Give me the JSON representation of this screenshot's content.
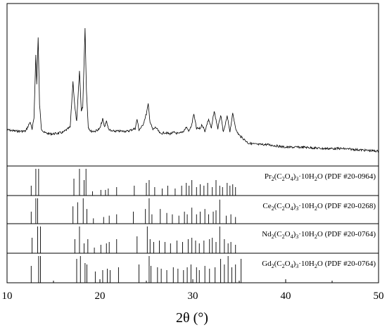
{
  "chart_data": {
    "type": "line",
    "xlabel": "2θ (°)",
    "xlim": [
      10,
      50
    ],
    "xticks": [
      10,
      20,
      30,
      40,
      50
    ],
    "xtick_labels": [
      "10",
      "20",
      "30",
      "40",
      "50"
    ],
    "xrd_pattern": {
      "x": [
        10.0,
        11.0,
        12.0,
        12.5,
        12.7,
        12.9,
        13.1,
        13.2,
        13.35,
        13.5,
        13.7,
        14.0,
        14.5,
        15.0,
        16.0,
        16.8,
        17.1,
        17.3,
        17.5,
        17.8,
        18.0,
        18.15,
        18.4,
        18.55,
        18.75,
        19.0,
        19.5,
        20.0,
        20.3,
        20.5,
        20.7,
        20.9,
        21.2,
        22.0,
        23.0,
        23.8,
        24.0,
        24.2,
        24.6,
        25.0,
        25.2,
        25.4,
        25.7,
        26.0,
        26.5,
        27.0,
        27.5,
        28.0,
        28.5,
        29.0,
        29.3,
        29.6,
        29.9,
        30.1,
        30.4,
        30.8,
        31.0,
        31.3,
        31.7,
        32.0,
        32.3,
        32.7,
        33.0,
        33.3,
        33.7,
        34.0,
        34.3,
        34.7,
        35.0,
        36.0,
        37.0,
        38.0,
        40.0,
        42.0,
        44.0,
        46.0,
        48.0,
        50.0
      ],
      "y": [
        16,
        15,
        15,
        22,
        16,
        25,
        72,
        50,
        85,
        35,
        17,
        14,
        13,
        13,
        14,
        18,
        52,
        33,
        22,
        60,
        30,
        33,
        92,
        45,
        18,
        15,
        15,
        17,
        24,
        18,
        23,
        17,
        15,
        15,
        15,
        17,
        24,
        16,
        19,
        28,
        35,
        22,
        16,
        18,
        13,
        14,
        13,
        14,
        13,
        15,
        18,
        15,
        20,
        28,
        17,
        17,
        20,
        15,
        24,
        17,
        30,
        17,
        27,
        14,
        26,
        15,
        28,
        15,
        12,
        6,
        5,
        5,
        3,
        3,
        2,
        2,
        1,
        0
      ]
    },
    "reference_panels": [
      {
        "name": "Pr2(C2O4)3·10H2O (PDF #20-0964)",
        "label_main": "Pr",
        "label_sub": [
          "2",
          "2",
          "4",
          "3",
          "2"
        ],
        "label_parts": [
          "(C",
          "O",
          ")",
          "·10H",
          "O (PDF #20-0964)"
        ],
        "peaks": [
          12.6,
          13.1,
          13.4,
          17.2,
          17.8,
          18.3,
          18.5,
          19.2,
          20.1,
          20.6,
          20.9,
          21.8,
          23.7,
          25.0,
          25.3,
          25.9,
          26.7,
          27.3,
          28.1,
          28.8,
          29.3,
          29.6,
          29.9,
          30.4,
          30.8,
          31.2,
          31.6,
          32.1,
          32.5,
          32.9,
          33.2,
          33.7,
          34.0,
          34.3,
          34.6
        ],
        "heights": [
          0.35,
          0.95,
          0.95,
          0.6,
          0.95,
          0.55,
          0.95,
          0.15,
          0.2,
          0.2,
          0.25,
          0.3,
          0.35,
          0.45,
          0.55,
          0.3,
          0.25,
          0.35,
          0.25,
          0.35,
          0.45,
          0.35,
          0.55,
          0.3,
          0.4,
          0.35,
          0.45,
          0.3,
          0.55,
          0.35,
          0.3,
          0.45,
          0.35,
          0.4,
          0.3
        ]
      },
      {
        "name": "Ce2(C2O4)3·10H2O (PDF #20-0268)",
        "label_main": "Ce",
        "label_sub": [
          "2",
          "2",
          "4",
          "3",
          "2"
        ],
        "label_parts": [
          "(C",
          "O",
          ")",
          "·10H",
          "O (PDF #20-0268)"
        ],
        "peaks": [
          12.6,
          13.1,
          13.3,
          17.1,
          17.6,
          18.2,
          18.6,
          19.3,
          20.4,
          21.0,
          21.8,
          23.6,
          24.9,
          25.3,
          25.6,
          26.5,
          27.2,
          27.8,
          28.5,
          29.1,
          29.4,
          29.9,
          30.4,
          30.8,
          31.3,
          31.7,
          32.2,
          32.5,
          32.9,
          33.6,
          34.1,
          34.6
        ],
        "heights": [
          0.45,
          0.95,
          0.95,
          0.65,
          0.8,
          0.95,
          0.55,
          0.2,
          0.25,
          0.3,
          0.35,
          0.45,
          0.55,
          0.95,
          0.35,
          0.55,
          0.4,
          0.35,
          0.3,
          0.45,
          0.35,
          0.6,
          0.35,
          0.45,
          0.55,
          0.35,
          0.45,
          0.5,
          0.9,
          0.3,
          0.35,
          0.25
        ]
      },
      {
        "name": "Nd2(C2O4)3·10H2O (PDF #20-0764)",
        "label_main": "Nd",
        "label_sub": [
          "2",
          "2",
          "4",
          "3",
          "2"
        ],
        "label_parts": [
          "(C",
          "O",
          ")",
          "·10H",
          "O (PDF #20-0764)"
        ],
        "peaks": [
          12.7,
          13.3,
          13.6,
          17.3,
          17.8,
          18.3,
          18.7,
          19.4,
          20.1,
          20.7,
          21.0,
          21.8,
          24.0,
          25.1,
          25.4,
          25.8,
          26.4,
          27.0,
          27.6,
          28.3,
          28.9,
          29.5,
          29.9,
          30.3,
          30.7,
          31.2,
          31.8,
          32.1,
          32.5,
          32.9,
          33.4,
          33.8,
          34.1,
          34.6
        ],
        "heights": [
          0.55,
          0.95,
          0.95,
          0.5,
          0.95,
          0.35,
          0.5,
          0.2,
          0.3,
          0.35,
          0.4,
          0.5,
          0.6,
          0.95,
          0.5,
          0.4,
          0.45,
          0.4,
          0.35,
          0.45,
          0.4,
          0.5,
          0.55,
          0.45,
          0.35,
          0.45,
          0.5,
          0.55,
          0.4,
          0.95,
          0.5,
          0.35,
          0.4,
          0.3
        ]
      },
      {
        "name": "Gd2(C2O4)3·10H2O (PDF #20-0764)",
        "label_main": "Gd",
        "label_sub": [
          "2",
          "2",
          "4",
          "3",
          "2"
        ],
        "label_parts": [
          "(C",
          "O",
          ")",
          "·10H",
          "O (PDF #20-0764)"
        ],
        "peaks": [
          12.6,
          13.4,
          13.6,
          17.5,
          17.9,
          18.4,
          18.6,
          19.5,
          20.3,
          20.8,
          21.1,
          22.0,
          24.2,
          25.3,
          25.5,
          26.2,
          26.6,
          27.2,
          27.9,
          28.4,
          29.0,
          29.4,
          29.8,
          30.4,
          30.7,
          31.3,
          31.8,
          32.4,
          33.0,
          33.4,
          33.8,
          34.2,
          34.6,
          35.2
        ],
        "heights": [
          0.6,
          0.95,
          0.95,
          0.85,
          0.95,
          0.7,
          0.65,
          0.4,
          0.45,
          0.5,
          0.45,
          0.55,
          0.65,
          0.95,
          0.6,
          0.55,
          0.5,
          0.45,
          0.55,
          0.5,
          0.45,
          0.55,
          0.65,
          0.55,
          0.45,
          0.6,
          0.5,
          0.55,
          0.85,
          0.65,
          0.95,
          0.55,
          0.65,
          0.85
        ]
      }
    ]
  }
}
